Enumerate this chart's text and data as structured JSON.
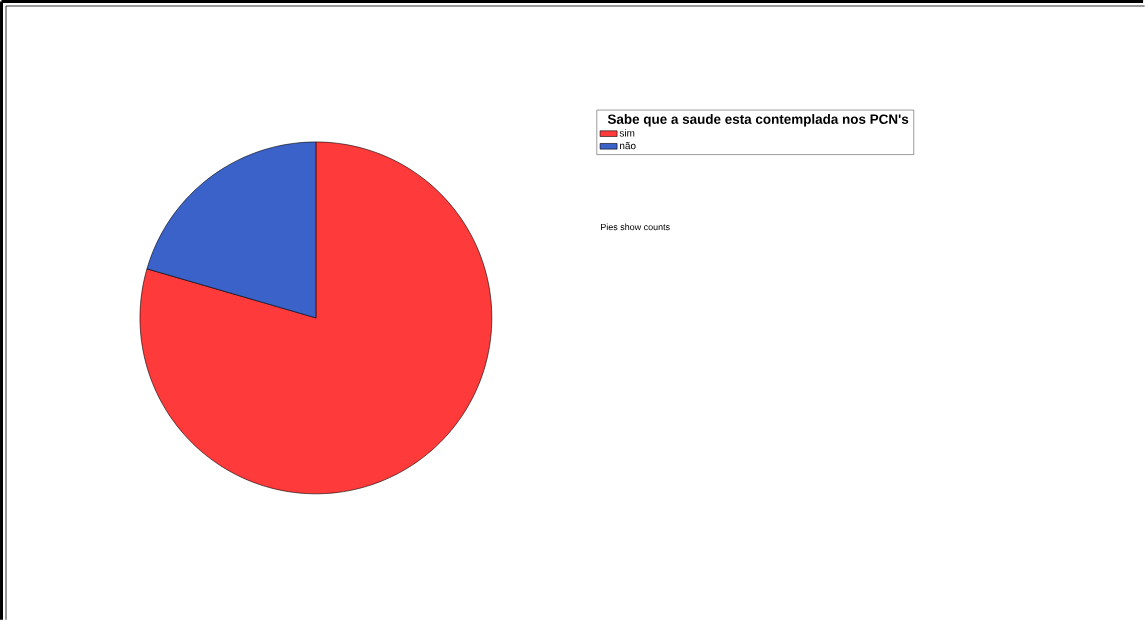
{
  "chart_data": {
    "type": "pie",
    "legend_title": "Sabe que a saude esta contemplada nos PCN's",
    "categories": [
      "sim",
      "não"
    ],
    "values": [
      79.5,
      20.5
    ],
    "colors": [
      "#ff3a3a",
      "#3a62c8"
    ],
    "legend": "right",
    "annotations": [
      "Pies show counts"
    ]
  }
}
